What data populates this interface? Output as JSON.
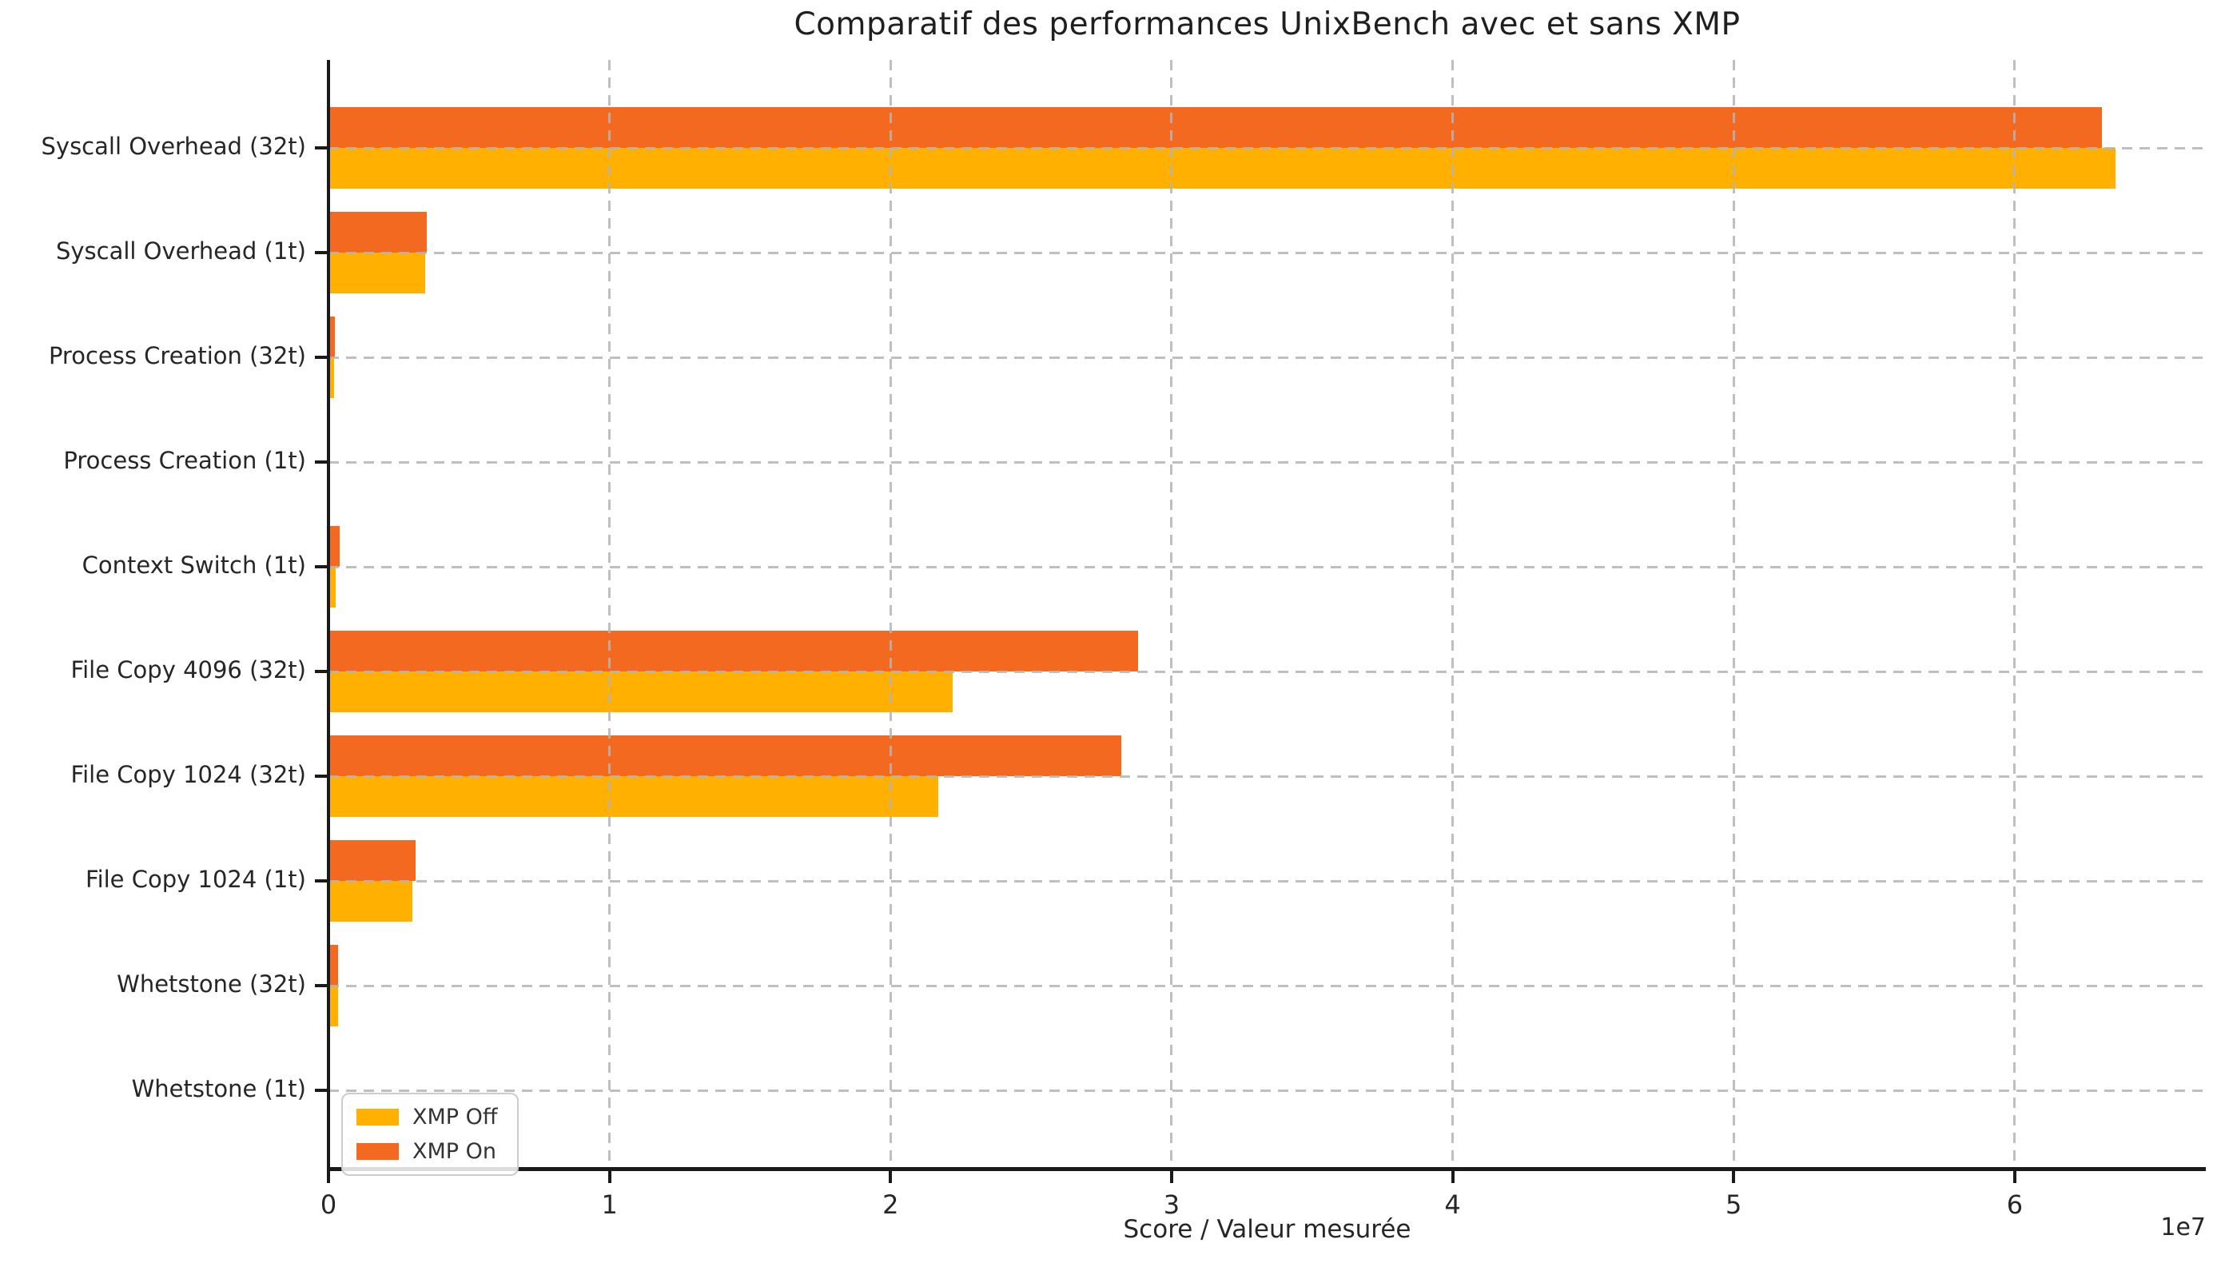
{
  "chart_data": {
    "type": "bar",
    "orientation": "horizontal",
    "title": "Comparatif des performances UnixBench avec et sans XMP",
    "xlabel": "Score / Valeur mesurée",
    "ylabel": "",
    "offset_text": "1e7",
    "categories": [
      "Syscall Overhead (32t)",
      "Syscall Overhead (1t)",
      "Process Creation (32t)",
      "Process Creation (1t)",
      "Context Switch (1t)",
      "File Copy 4096 (32t)",
      "File Copy 1024 (32t)",
      "File Copy 1024 (1t)",
      "Whetstone (32t)",
      "Whetstone (1t)"
    ],
    "series": [
      {
        "name": "XMP Off",
        "color": "#FFB000",
        "values": [
          63600000,
          3450000,
          210000,
          10000,
          250000,
          22200000,
          21700000,
          3000000,
          330000,
          10000
        ]
      },
      {
        "name": "XMP On",
        "color": "#F2691F",
        "values": [
          63100000,
          3500000,
          240000,
          11000,
          400000,
          28800000,
          28200000,
          3100000,
          350000,
          11000
        ]
      }
    ],
    "xlim": [
      0,
      66800000
    ],
    "xticks": [
      0,
      10000000,
      20000000,
      30000000,
      40000000,
      50000000,
      60000000
    ],
    "xtick_labels": [
      "0",
      "1",
      "2",
      "3",
      "4",
      "5",
      "6"
    ],
    "grid": "dashed, both axes, drawn above bars",
    "legend_position": "lower left",
    "legend_order": [
      "XMP Off",
      "XMP On"
    ]
  },
  "colors": {
    "background": "#FFFFFF",
    "axis": "#1A1A1A",
    "grid": "#B4B4B4",
    "text": "#262626"
  }
}
